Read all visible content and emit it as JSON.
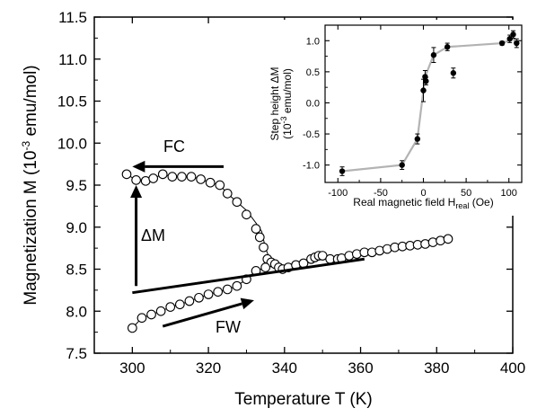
{
  "chart_data": [
    {
      "type": "scatter",
      "title": "",
      "xlabel": "Temperature T (K)",
      "ylabel": "Magnetization M (10",
      "ylabel_sup": "-3",
      "ylabel_tail": " emu/mol)",
      "xlim": [
        290,
        400
      ],
      "ylim": [
        7.5,
        11.5
      ],
      "xticks": [
        "300",
        "320",
        "340",
        "360",
        "380",
        "400"
      ],
      "yticks": [
        "7.5",
        "8.0",
        "8.5",
        "9.0",
        "9.5",
        "10.0",
        "10.5",
        "11.0",
        "11.5"
      ],
      "grid": false,
      "marker": "open-circle",
      "series": [
        {
          "x": [
            298.5,
            301,
            303.5,
            305.5,
            308,
            310.5,
            313,
            315.5,
            318,
            320.5,
            323,
            325,
            327.5,
            330,
            332.5,
            333.5,
            334.5,
            335.5,
            336.5,
            337.5,
            338.5,
            339.5,
            341,
            343,
            345,
            347,
            348,
            349,
            350,
            352,
            354,
            355,
            357,
            359,
            361,
            363,
            365,
            367,
            369,
            371,
            373,
            375,
            377,
            379,
            381,
            383
          ],
          "y": [
            9.63,
            9.56,
            9.55,
            9.58,
            9.63,
            9.6,
            9.6,
            9.6,
            9.57,
            9.53,
            9.5,
            9.4,
            9.3,
            9.15,
            8.98,
            8.88,
            8.76,
            8.62,
            8.58,
            8.56,
            8.52,
            8.5,
            8.52,
            8.55,
            8.57,
            8.62,
            8.64,
            8.66,
            8.66,
            8.62,
            8.62,
            8.63,
            8.66,
            8.68,
            8.7,
            8.7,
            8.72,
            8.74,
            8.76,
            8.77,
            8.78,
            8.79,
            8.8,
            8.82,
            8.84,
            8.86
          ]
        },
        {
          "x": [
            300,
            302.5,
            305,
            307.5,
            310,
            312.5,
            315,
            317.5,
            320,
            322.5,
            325,
            327.5,
            330,
            332.5,
            335
          ],
          "y": [
            7.8,
            7.92,
            7.96,
            8.0,
            8.05,
            8.08,
            8.12,
            8.16,
            8.2,
            8.23,
            8.26,
            8.3,
            8.38,
            8.48,
            8.52
          ]
        }
      ],
      "fc_line": {
        "x": [
          298.5,
          301,
          303.5,
          305.5,
          308,
          310.5,
          313,
          315.5,
          318,
          320.5,
          323,
          325,
          327.5,
          330,
          332.5,
          334,
          335,
          336.5,
          337.5
        ],
        "y": [
          9.63,
          9.56,
          9.55,
          9.58,
          9.63,
          9.6,
          9.6,
          9.6,
          9.57,
          9.53,
          9.5,
          9.4,
          9.3,
          9.2,
          9.05,
          8.95,
          8.75,
          8.58,
          8.55
        ]
      },
      "fw_line": {
        "x": [
          300,
          302.5,
          305,
          307.5,
          310,
          312.5,
          315,
          317.5,
          320,
          322.5,
          325,
          327.5,
          330,
          332.5,
          335,
          338
        ],
        "y": [
          7.8,
          7.92,
          7.96,
          8.0,
          8.05,
          8.08,
          8.12,
          8.16,
          8.2,
          8.23,
          8.26,
          8.3,
          8.38,
          8.48,
          8.52,
          8.55
        ]
      },
      "annotations": {
        "fc_label": "FC",
        "fw_label": "FW",
        "dm_label": "ΔM",
        "fc_arrow": {
          "x1": 324,
          "y1": 9.72,
          "x2": 300,
          "y2": 9.72
        },
        "fw_arrow": {
          "x1": 308,
          "y1": 7.82,
          "x2": 332,
          "y2": 8.13
        },
        "dm_arrow": {
          "x1": 301,
          "y1": 8.3,
          "x2": 301,
          "y2": 9.5
        },
        "baseline": {
          "x1": 300,
          "y1": 8.22,
          "x2": 361,
          "y2": 8.62
        }
      }
    },
    {
      "type": "scatter",
      "title": "",
      "xlabel": "Real magnetic field H",
      "xlabel_sub": "real",
      "xlabel_tail": " (Oe)",
      "ylabel_line1": "Step height ΔM",
      "ylabel_line2a": "(10",
      "ylabel_line2_sup": "-3",
      "ylabel_line2b": " emu/mol)",
      "xlim": [
        -115,
        115
      ],
      "ylim": [
        -1.28,
        1.25
      ],
      "xticks": [
        "-100",
        "-50",
        "0",
        "50",
        "100"
      ],
      "yticks": [
        "-1.0",
        "-0.5",
        "0.0",
        "0.5",
        "1.0"
      ],
      "grid": false,
      "marker": "filled-circle",
      "series": [
        {
          "x": [
            -95,
            -25,
            -7,
            0,
            2,
            3,
            12,
            28,
            35,
            92,
            101,
            105,
            109
          ],
          "y": [
            -1.1,
            -1.0,
            -0.58,
            0.2,
            0.42,
            0.35,
            0.77,
            0.9,
            0.48,
            0.96,
            1.03,
            1.1,
            0.96
          ],
          "err": [
            0.07,
            0.07,
            0.08,
            0.18,
            0.1,
            0.06,
            0.12,
            0.06,
            0.08,
            0.03,
            0.06,
            0.06,
            0.07
          ]
        }
      ],
      "trend_line": {
        "x": [
          -95,
          -25,
          -7,
          0,
          2,
          12,
          28,
          92,
          105,
          109
        ],
        "y": [
          -1.1,
          -1.0,
          -0.58,
          0.2,
          0.42,
          0.77,
          0.9,
          0.96,
          1.03,
          0.96
        ]
      }
    }
  ]
}
